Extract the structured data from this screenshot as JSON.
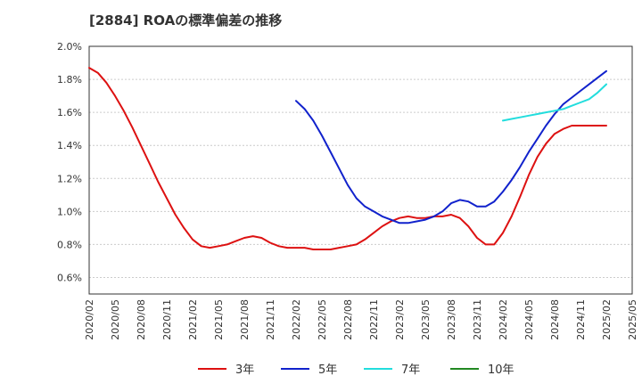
{
  "chart_data": {
    "type": "line",
    "title": "[2884]  ROAの標準偏差の推移",
    "xlabel": "",
    "ylabel": "",
    "ylim": [
      0.5,
      2.0
    ],
    "yticks": [
      "2.0%",
      "1.8%",
      "1.6%",
      "1.4%",
      "1.2%",
      "1.0%",
      "0.8%",
      "0.6%"
    ],
    "ytick_values": [
      2.0,
      1.8,
      1.6,
      1.4,
      1.2,
      1.0,
      0.8,
      0.6
    ],
    "xticks": [
      "2020/02",
      "2020/05",
      "2020/08",
      "2020/11",
      "2021/02",
      "2021/05",
      "2021/08",
      "2021/11",
      "2022/02",
      "2022/05",
      "2022/08",
      "2022/11",
      "2023/02",
      "2023/05",
      "2023/08",
      "2023/11",
      "2024/02",
      "2024/05",
      "2024/08",
      "2024/11",
      "2025/02",
      "2025/05"
    ],
    "grid": "horizontal",
    "legend_position": "bottom",
    "series": [
      {
        "name": "3年",
        "color": "#dd1111",
        "x": [
          "2020/02",
          "2020/03",
          "2020/04",
          "2020/05",
          "2020/06",
          "2020/07",
          "2020/08",
          "2020/09",
          "2020/10",
          "2020/11",
          "2020/12",
          "2021/01",
          "2021/02",
          "2021/03",
          "2021/04",
          "2021/05",
          "2021/06",
          "2021/07",
          "2021/08",
          "2021/09",
          "2021/10",
          "2021/11",
          "2021/12",
          "2022/01",
          "2022/02",
          "2022/03",
          "2022/04",
          "2022/05",
          "2022/06",
          "2022/07",
          "2022/08",
          "2022/09",
          "2022/10",
          "2022/11",
          "2022/12",
          "2023/01",
          "2023/02",
          "2023/03",
          "2023/04",
          "2023/05",
          "2023/06",
          "2023/07",
          "2023/08",
          "2023/09",
          "2023/10",
          "2023/11",
          "2023/12",
          "2024/01",
          "2024/02",
          "2024/03",
          "2024/04",
          "2024/05",
          "2024/06",
          "2024/07",
          "2024/08",
          "2024/09",
          "2024/10",
          "2024/11",
          "2024/12",
          "2025/01",
          "2025/02"
        ],
        "values": [
          1.87,
          1.84,
          1.78,
          1.7,
          1.61,
          1.51,
          1.4,
          1.29,
          1.18,
          1.08,
          0.98,
          0.9,
          0.83,
          0.79,
          0.78,
          0.79,
          0.8,
          0.82,
          0.84,
          0.85,
          0.84,
          0.81,
          0.79,
          0.78,
          0.78,
          0.78,
          0.77,
          0.77,
          0.77,
          0.78,
          0.79,
          0.8,
          0.83,
          0.87,
          0.91,
          0.94,
          0.96,
          0.97,
          0.96,
          0.96,
          0.97,
          0.97,
          0.98,
          0.96,
          0.91,
          0.84,
          0.8,
          0.8,
          0.87,
          0.97,
          1.09,
          1.22,
          1.33,
          1.41,
          1.47,
          1.5,
          1.52,
          1.52,
          1.52,
          1.52,
          1.52
        ]
      },
      {
        "name": "5年",
        "color": "#1122cc",
        "x": [
          "2022/02",
          "2022/03",
          "2022/04",
          "2022/05",
          "2022/06",
          "2022/07",
          "2022/08",
          "2022/09",
          "2022/10",
          "2022/11",
          "2022/12",
          "2023/01",
          "2023/02",
          "2023/03",
          "2023/04",
          "2023/05",
          "2023/06",
          "2023/07",
          "2023/08",
          "2023/09",
          "2023/10",
          "2023/11",
          "2023/12",
          "2024/01",
          "2024/02",
          "2024/03",
          "2024/04",
          "2024/05",
          "2024/06",
          "2024/07",
          "2024/08",
          "2024/09",
          "2024/10",
          "2024/11",
          "2024/12",
          "2025/01",
          "2025/02"
        ],
        "values": [
          1.67,
          1.62,
          1.55,
          1.46,
          1.36,
          1.26,
          1.16,
          1.08,
          1.03,
          1.0,
          0.97,
          0.95,
          0.93,
          0.93,
          0.94,
          0.95,
          0.97,
          1.0,
          1.05,
          1.07,
          1.06,
          1.03,
          1.03,
          1.06,
          1.12,
          1.19,
          1.27,
          1.36,
          1.44,
          1.52,
          1.59,
          1.65,
          1.69,
          1.73,
          1.77,
          1.81,
          1.85
        ]
      },
      {
        "name": "7年",
        "color": "#22dddd",
        "x": [
          "2024/02",
          "2024/03",
          "2024/04",
          "2024/05",
          "2024/06",
          "2024/07",
          "2024/08",
          "2024/09",
          "2024/10",
          "2024/11",
          "2024/12",
          "2025/01",
          "2025/02"
        ],
        "values": [
          1.55,
          1.56,
          1.57,
          1.58,
          1.59,
          1.6,
          1.61,
          1.62,
          1.64,
          1.66,
          1.68,
          1.72,
          1.77
        ]
      },
      {
        "name": "10年",
        "color": "#228822",
        "x": [],
        "values": []
      }
    ]
  }
}
